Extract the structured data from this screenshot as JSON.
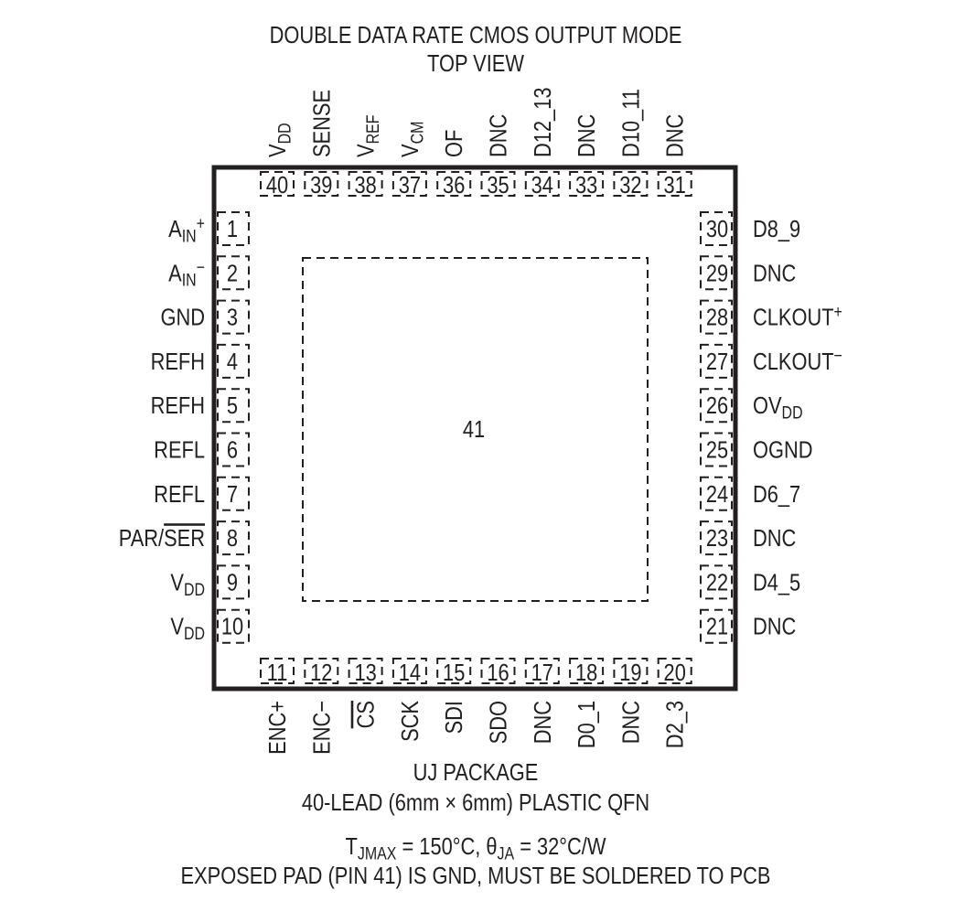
{
  "title": "DOUBLE DATA RATE CMOS OUTPUT MODE",
  "subtitle": "TOP VIEW",
  "exposed_pad_number": "41",
  "package_name": "UJ PACKAGE",
  "package_desc": "40-LEAD (6mm × 6mm) PLASTIC QFN",
  "thermal": [
    {
      "t": "T"
    },
    {
      "t": "JMAX",
      "s": "sub"
    },
    {
      "t": " = 150°C, θ"
    },
    {
      "t": "JA",
      "s": "sub"
    },
    {
      "t": " = 32°C/W"
    }
  ],
  "note": "EXPOSED PAD (PIN 41) IS GND, MUST BE SOLDERED TO PCB",
  "pins": {
    "left": [
      {
        "num": "1",
        "label": [
          {
            "t": "A"
          },
          {
            "t": "IN",
            "s": "sub"
          },
          {
            "t": "+",
            "s": "sup"
          }
        ]
      },
      {
        "num": "2",
        "label": [
          {
            "t": "A"
          },
          {
            "t": "IN",
            "s": "sub"
          },
          {
            "t": "−",
            "s": "sup"
          }
        ]
      },
      {
        "num": "3",
        "label": [
          {
            "t": "GND"
          }
        ]
      },
      {
        "num": "4",
        "label": [
          {
            "t": "REFH"
          }
        ]
      },
      {
        "num": "5",
        "label": [
          {
            "t": "REFH"
          }
        ]
      },
      {
        "num": "6",
        "label": [
          {
            "t": "REFL"
          }
        ]
      },
      {
        "num": "7",
        "label": [
          {
            "t": "REFL"
          }
        ]
      },
      {
        "num": "8",
        "label": [
          {
            "t": "PAR/"
          },
          {
            "t": "SER",
            "s": "over"
          }
        ]
      },
      {
        "num": "9",
        "label": [
          {
            "t": "V"
          },
          {
            "t": "DD",
            "s": "sub"
          }
        ]
      },
      {
        "num": "10",
        "label": [
          {
            "t": "V"
          },
          {
            "t": "DD",
            "s": "sub"
          }
        ]
      }
    ],
    "bottom": [
      {
        "num": "11",
        "label": [
          {
            "t": "ENC+"
          }
        ]
      },
      {
        "num": "12",
        "label": [
          {
            "t": "ENC−"
          }
        ]
      },
      {
        "num": "13",
        "label": [
          {
            "t": "CS",
            "s": "over"
          }
        ]
      },
      {
        "num": "14",
        "label": [
          {
            "t": "SCK"
          }
        ]
      },
      {
        "num": "15",
        "label": [
          {
            "t": "SDI"
          }
        ]
      },
      {
        "num": "16",
        "label": [
          {
            "t": "SDO"
          }
        ]
      },
      {
        "num": "17",
        "label": [
          {
            "t": "DNC"
          }
        ]
      },
      {
        "num": "18",
        "label": [
          {
            "t": "D0_1"
          }
        ]
      },
      {
        "num": "19",
        "label": [
          {
            "t": "DNC"
          }
        ]
      },
      {
        "num": "20",
        "label": [
          {
            "t": "D2_3"
          }
        ]
      }
    ],
    "right": [
      {
        "num": "30",
        "label": [
          {
            "t": "D8_9"
          }
        ]
      },
      {
        "num": "29",
        "label": [
          {
            "t": "DNC"
          }
        ]
      },
      {
        "num": "28",
        "label": [
          {
            "t": "CLKOUT"
          },
          {
            "t": "+",
            "s": "sup"
          }
        ]
      },
      {
        "num": "27",
        "label": [
          {
            "t": "CLKOUT"
          },
          {
            "t": "−",
            "s": "sup"
          }
        ]
      },
      {
        "num": "26",
        "label": [
          {
            "t": "OV"
          },
          {
            "t": "DD",
            "s": "sub"
          }
        ]
      },
      {
        "num": "25",
        "label": [
          {
            "t": "OGND"
          }
        ]
      },
      {
        "num": "24",
        "label": [
          {
            "t": "D6_7"
          }
        ]
      },
      {
        "num": "23",
        "label": [
          {
            "t": "DNC"
          }
        ]
      },
      {
        "num": "22",
        "label": [
          {
            "t": "D4_5"
          }
        ]
      },
      {
        "num": "21",
        "label": [
          {
            "t": "DNC"
          }
        ]
      }
    ],
    "top": [
      {
        "num": "40",
        "label": [
          {
            "t": "V"
          },
          {
            "t": "DD",
            "s": "sub"
          }
        ]
      },
      {
        "num": "39",
        "label": [
          {
            "t": "SENSE"
          }
        ]
      },
      {
        "num": "38",
        "label": [
          {
            "t": "V"
          },
          {
            "t": "REF",
            "s": "sub"
          }
        ]
      },
      {
        "num": "37",
        "label": [
          {
            "t": "V"
          },
          {
            "t": "CM",
            "s": "sub"
          }
        ]
      },
      {
        "num": "36",
        "label": [
          {
            "t": "OF"
          }
        ]
      },
      {
        "num": "35",
        "label": [
          {
            "t": "DNC"
          }
        ]
      },
      {
        "num": "34",
        "label": [
          {
            "t": "D12_13"
          }
        ]
      },
      {
        "num": "33",
        "label": [
          {
            "t": "DNC"
          }
        ]
      },
      {
        "num": "32",
        "label": [
          {
            "t": "D10_11"
          }
        ]
      },
      {
        "num": "31",
        "label": [
          {
            "t": "DNC"
          }
        ]
      }
    ]
  }
}
